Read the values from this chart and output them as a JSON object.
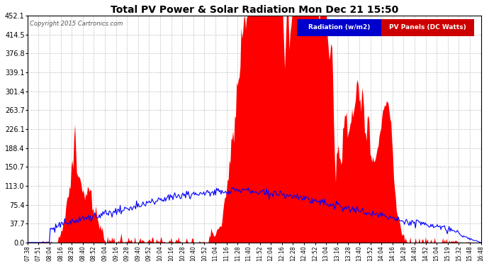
{
  "title": "Total PV Power & Solar Radiation Mon Dec 21 15:50",
  "copyright": "Copyright 2015 Cartronics.com",
  "legend_radiation": "Radiation (w/m2)",
  "legend_pv": "PV Panels (DC Watts)",
  "legend_radiation_bg": "#0000cc",
  "legend_pv_bg": "#cc0000",
  "background_color": "#ffffff",
  "plot_bg_color": "#ffffff",
  "grid_color": "#bbbbbb",
  "fill_color": "#ff0000",
  "line_color": "#0000ff",
  "ymax": 452.1,
  "ymin": 0.0,
  "yticks": [
    0.0,
    37.7,
    75.4,
    113.0,
    150.7,
    188.4,
    226.1,
    263.7,
    301.4,
    339.1,
    376.8,
    414.5,
    452.1
  ],
  "xtick_labels": [
    "07:38",
    "07:51",
    "08:04",
    "08:16",
    "08:28",
    "08:40",
    "08:52",
    "09:04",
    "09:16",
    "09:28",
    "09:40",
    "09:52",
    "10:04",
    "10:16",
    "10:28",
    "10:40",
    "10:52",
    "11:04",
    "11:16",
    "11:28",
    "11:40",
    "11:52",
    "12:04",
    "12:16",
    "12:28",
    "12:40",
    "12:52",
    "13:04",
    "13:16",
    "13:28",
    "13:40",
    "13:52",
    "14:04",
    "14:16",
    "14:28",
    "14:40",
    "14:52",
    "15:04",
    "15:19",
    "15:32",
    "15:48",
    "16:48"
  ]
}
